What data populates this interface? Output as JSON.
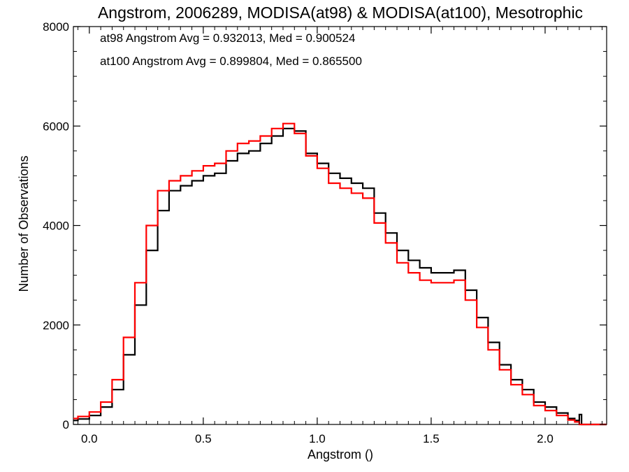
{
  "chart_data": {
    "type": "line",
    "title": "Angstrom, 2006289, MODISA(at98) & MODISA(at100), Mesotrophic",
    "xlabel": "Angstrom ()",
    "ylabel": "Number of Observations",
    "xlim": [
      -0.07,
      2.27
    ],
    "ylim": [
      0,
      8000
    ],
    "xticks": [
      0.0,
      0.5,
      1.0,
      1.5,
      2.0
    ],
    "xtick_labels": [
      "0.0",
      "0.5",
      "1.0",
      "1.5",
      "2.0"
    ],
    "yticks": [
      0,
      2000,
      4000,
      6000,
      8000
    ],
    "ytick_labels": [
      "0",
      "2000",
      "4000",
      "6000",
      "8000"
    ],
    "annotations": [
      {
        "text": "at98 Angstrom Avg = 0.932013, Med = 0.900524",
        "color": "#000000"
      },
      {
        "text": "at100 Angstrom Avg = 0.899804, Med = 0.865500",
        "color": "#ff0000"
      }
    ],
    "series": [
      {
        "color": "#000000",
        "x": [
          -0.07,
          -0.05,
          0.0,
          0.05,
          0.1,
          0.15,
          0.2,
          0.25,
          0.3,
          0.35,
          0.4,
          0.45,
          0.5,
          0.55,
          0.6,
          0.65,
          0.7,
          0.75,
          0.8,
          0.85,
          0.9,
          0.95,
          1.0,
          1.05,
          1.1,
          1.15,
          1.2,
          1.25,
          1.3,
          1.35,
          1.4,
          1.45,
          1.5,
          1.55,
          1.6,
          1.65,
          1.7,
          1.75,
          1.8,
          1.85,
          1.9,
          1.95,
          2.0,
          2.05,
          2.1,
          2.13,
          2.15,
          2.16,
          2.27
        ],
        "y": [
          80,
          110,
          180,
          350,
          700,
          1400,
          2400,
          3500,
          4300,
          4700,
          4800,
          4900,
          5000,
          5050,
          5300,
          5450,
          5500,
          5650,
          5800,
          5950,
          5900,
          5450,
          5250,
          5050,
          4950,
          4850,
          4750,
          4250,
          3850,
          3500,
          3300,
          3150,
          3050,
          3050,
          3100,
          2700,
          2150,
          1650,
          1200,
          900,
          700,
          450,
          350,
          230,
          120,
          80,
          200,
          0,
          0
        ]
      },
      {
        "color": "#ff0000",
        "x": [
          -0.07,
          -0.05,
          0.0,
          0.05,
          0.1,
          0.15,
          0.2,
          0.25,
          0.3,
          0.35,
          0.4,
          0.45,
          0.5,
          0.55,
          0.6,
          0.65,
          0.7,
          0.75,
          0.8,
          0.85,
          0.9,
          0.95,
          1.0,
          1.05,
          1.1,
          1.15,
          1.2,
          1.25,
          1.3,
          1.35,
          1.4,
          1.45,
          1.5,
          1.55,
          1.6,
          1.65,
          1.7,
          1.75,
          1.8,
          1.85,
          1.9,
          1.95,
          2.0,
          2.05,
          2.1,
          2.13,
          2.15,
          2.16,
          2.27
        ],
        "y": [
          120,
          160,
          250,
          450,
          900,
          1750,
          2850,
          4000,
          4700,
          4900,
          5000,
          5100,
          5200,
          5250,
          5500,
          5650,
          5700,
          5800,
          5950,
          6050,
          5850,
          5400,
          5150,
          4850,
          4750,
          4650,
          4550,
          4050,
          3650,
          3250,
          3050,
          2900,
          2850,
          2850,
          2900,
          2500,
          1950,
          1500,
          1100,
          800,
          600,
          380,
          280,
          180,
          90,
          50,
          0,
          0,
          0
        ]
      }
    ]
  }
}
